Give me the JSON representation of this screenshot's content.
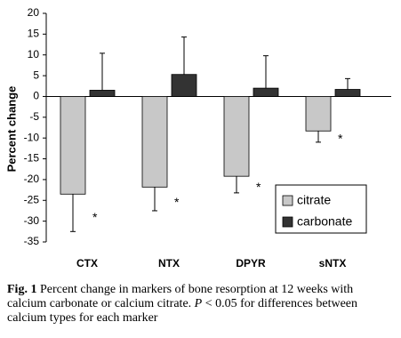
{
  "chart_data": {
    "type": "bar",
    "y_label": "Percent change",
    "categories": [
      "CTX",
      "NTX",
      "DPYR",
      "sNTX"
    ],
    "series": [
      {
        "name": "citrate",
        "color": "#c8c8c8",
        "values": [
          -23.5,
          -21.8,
          -19.2,
          -8.3
        ],
        "errors": [
          9,
          5.7,
          4,
          2.7
        ]
      },
      {
        "name": "carbonate",
        "color": "#333333",
        "values": [
          1.5,
          5.3,
          2.0,
          1.7
        ],
        "errors": [
          8.9,
          9,
          7.8,
          2.6
        ]
      }
    ],
    "significance": [
      "*",
      "*",
      "*",
      "*"
    ],
    "ylim": [
      -35,
      20
    ],
    "yticks": [
      -35,
      -30,
      -25,
      -20,
      -15,
      -10,
      -5,
      0,
      5,
      10,
      15,
      20
    ]
  },
  "caption": {
    "label": "Fig. 1",
    "text": "Percent change in markers of bone resorption at 12 weeks with calcium carbonate or calcium citrate.",
    "p": "P",
    "text_after": "< 0.05 for differences between calcium types for each marker"
  }
}
